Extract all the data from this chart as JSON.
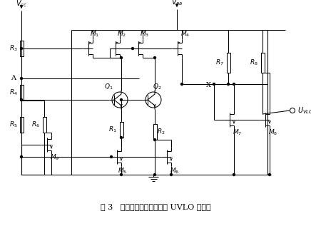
{
  "title": "图 3   应用带隙基准比较器的 UVLO 电路图",
  "fig_width": 4.36,
  "fig_height": 3.17,
  "dpi": 100
}
